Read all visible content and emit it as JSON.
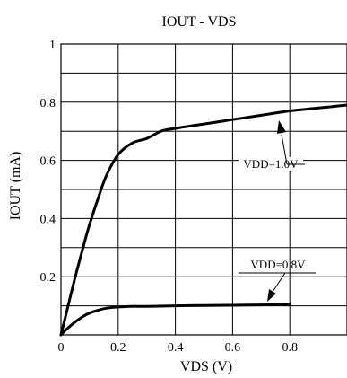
{
  "chart_data": {
    "type": "line",
    "title": "IOUT - VDS",
    "xlabel": "VDS (V)",
    "ylabel": "IOUT (mA)",
    "xlim": [
      0,
      1.0
    ],
    "ylim": [
      0,
      1.0
    ],
    "x_ticks": [
      0,
      0.2,
      0.4,
      0.6,
      0.8
    ],
    "x_tick_labels": [
      "0",
      "0.2",
      "0.4",
      "0.6",
      "0.8"
    ],
    "y_ticks": [
      0.2,
      0.4,
      0.6,
      0.8,
      1.0
    ],
    "y_tick_labels": [
      "0.2",
      "0.4",
      "0.6",
      "0.8",
      "1"
    ],
    "grid": true,
    "series": [
      {
        "name": "VDD=1.0V",
        "x": [
          0,
          0.02,
          0.05,
          0.08,
          0.1,
          0.13,
          0.16,
          0.2,
          0.25,
          0.3,
          0.35,
          0.4,
          0.5,
          0.6,
          0.7,
          0.8,
          0.9,
          1.0
        ],
        "y": [
          0,
          0.08,
          0.2,
          0.31,
          0.38,
          0.47,
          0.55,
          0.62,
          0.66,
          0.675,
          0.7,
          0.71,
          0.725,
          0.74,
          0.755,
          0.77,
          0.78,
          0.79
        ]
      },
      {
        "name": "VDD=0.8V",
        "x": [
          0,
          0.02,
          0.05,
          0.08,
          0.1,
          0.13,
          0.16,
          0.2,
          0.25,
          0.3,
          0.4,
          0.5,
          0.6,
          0.7,
          0.8
        ],
        "y": [
          0,
          0.02,
          0.045,
          0.065,
          0.075,
          0.085,
          0.092,
          0.096,
          0.098,
          0.098,
          0.1,
          0.101,
          0.102,
          0.103,
          0.105
        ]
      }
    ],
    "annotations": [
      {
        "text": "VDD=1.0V",
        "series": 0
      },
      {
        "text": "VDD=0.8V",
        "series": 1
      }
    ]
  }
}
